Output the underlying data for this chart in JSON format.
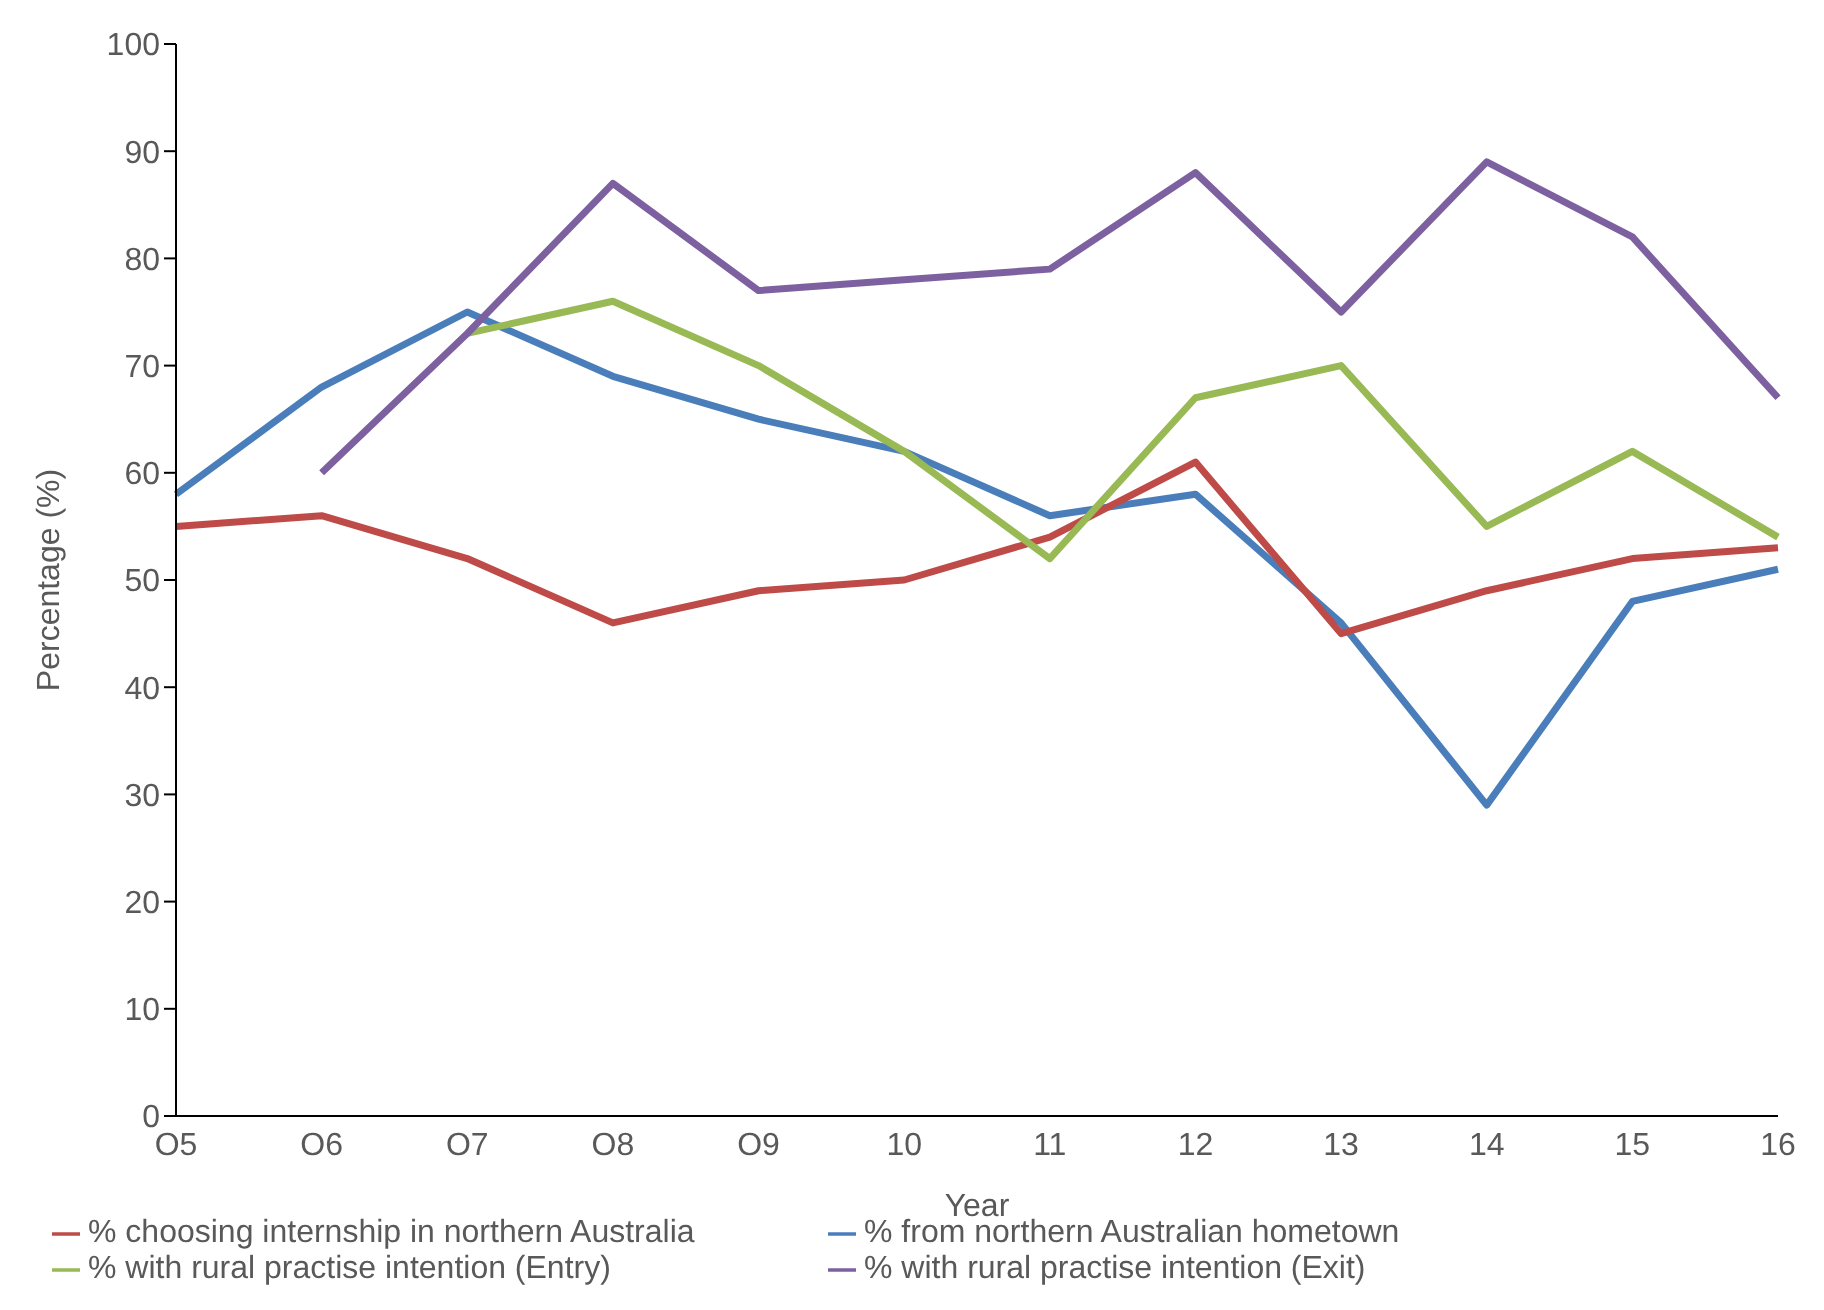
{
  "chart_data": {
    "type": "line",
    "xlabel": "Year",
    "ylabel": "Percentage (%)",
    "categories": [
      "O5",
      "O6",
      "O7",
      "O8",
      "O9",
      "10",
      "11",
      "12",
      "13",
      "14",
      "15",
      "16"
    ],
    "series": [
      {
        "name": "% from northern Australian hometown",
        "color": "#4a7ebb",
        "values": [
          58,
          68,
          75,
          69,
          65,
          62,
          56,
          58,
          46,
          29,
          48,
          51
        ]
      },
      {
        "name": "% choosing internship in northern Australia",
        "color": "#be4b48",
        "values": [
          55,
          56,
          52,
          46,
          49,
          50,
          54,
          61,
          45,
          49,
          52,
          53
        ]
      },
      {
        "name": "% with rural practise intention (Entry)",
        "color": "#98b954",
        "values": [
          null,
          null,
          73,
          76,
          70,
          62,
          52,
          67,
          70,
          55,
          62,
          54
        ]
      },
      {
        "name": "% with rural practise intention (Exit)",
        "color": "#7d60a0",
        "values": [
          null,
          60,
          73,
          87,
          77,
          78,
          79,
          88,
          75,
          89,
          82,
          67
        ]
      }
    ],
    "ylim": [
      0,
      100
    ],
    "yticks": [
      0,
      10,
      20,
      30,
      40,
      50,
      60,
      70,
      80,
      90,
      100
    ],
    "grid": false,
    "legend": "bottom",
    "marker": "none",
    "line_style": "solid"
  }
}
